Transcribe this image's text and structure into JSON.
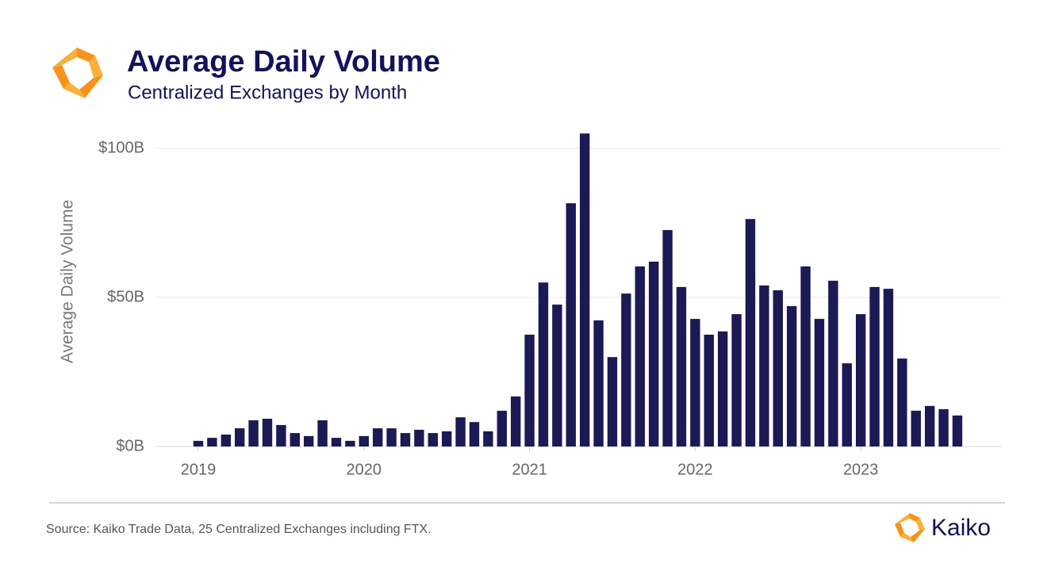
{
  "chart_data": {
    "type": "bar",
    "title": "Average Daily Volume",
    "subtitle": "Centralized Exchanges by Month",
    "y_label": "Average Daily Volume",
    "source": "Source: Kaiko Trade Data, 25 Centralized Exchanges including FTX.",
    "brand": "Kaiko",
    "color": "#1b1a55",
    "grid": true,
    "categories": [
      "2019",
      null,
      null,
      null,
      null,
      null,
      null,
      null,
      null,
      null,
      null,
      null,
      "2020",
      null,
      null,
      null,
      null,
      null,
      null,
      null,
      null,
      null,
      null,
      null,
      "2021",
      null,
      null,
      null,
      null,
      null,
      null,
      null,
      null,
      null,
      null,
      null,
      "2022",
      null,
      null,
      null,
      null,
      null,
      null,
      null,
      null,
      null,
      null,
      null,
      "2023",
      null,
      null,
      null,
      null,
      null,
      null,
      null
    ],
    "values": [
      1.9,
      2.9,
      4,
      6.1,
      8.8,
      9.3,
      7.2,
      4.5,
      3.5,
      8.8,
      2.9,
      1.9,
      3.5,
      6.1,
      6.1,
      4.5,
      5.6,
      4.5,
      5.1,
      9.8,
      8.2,
      5.1,
      12,
      16.8,
      37.5,
      55,
      47.6,
      81.6,
      105,
      42.3,
      30,
      51.3,
      60.4,
      62,
      72.6,
      53.5,
      42.8,
      37.5,
      38.6,
      44.4,
      76.3,
      54,
      52.4,
      47.1,
      60.4,
      42.8,
      55.6,
      27.9,
      44.4,
      53.5,
      52.9,
      29.5,
      12,
      13.6,
      12.5,
      10.4
    ],
    "ylim": [
      0,
      108
    ],
    "yticks": [
      {
        "value": 0,
        "label": "$0B"
      },
      {
        "value": 50,
        "label": "$50B"
      },
      {
        "value": 100,
        "label": "$100B"
      }
    ]
  }
}
